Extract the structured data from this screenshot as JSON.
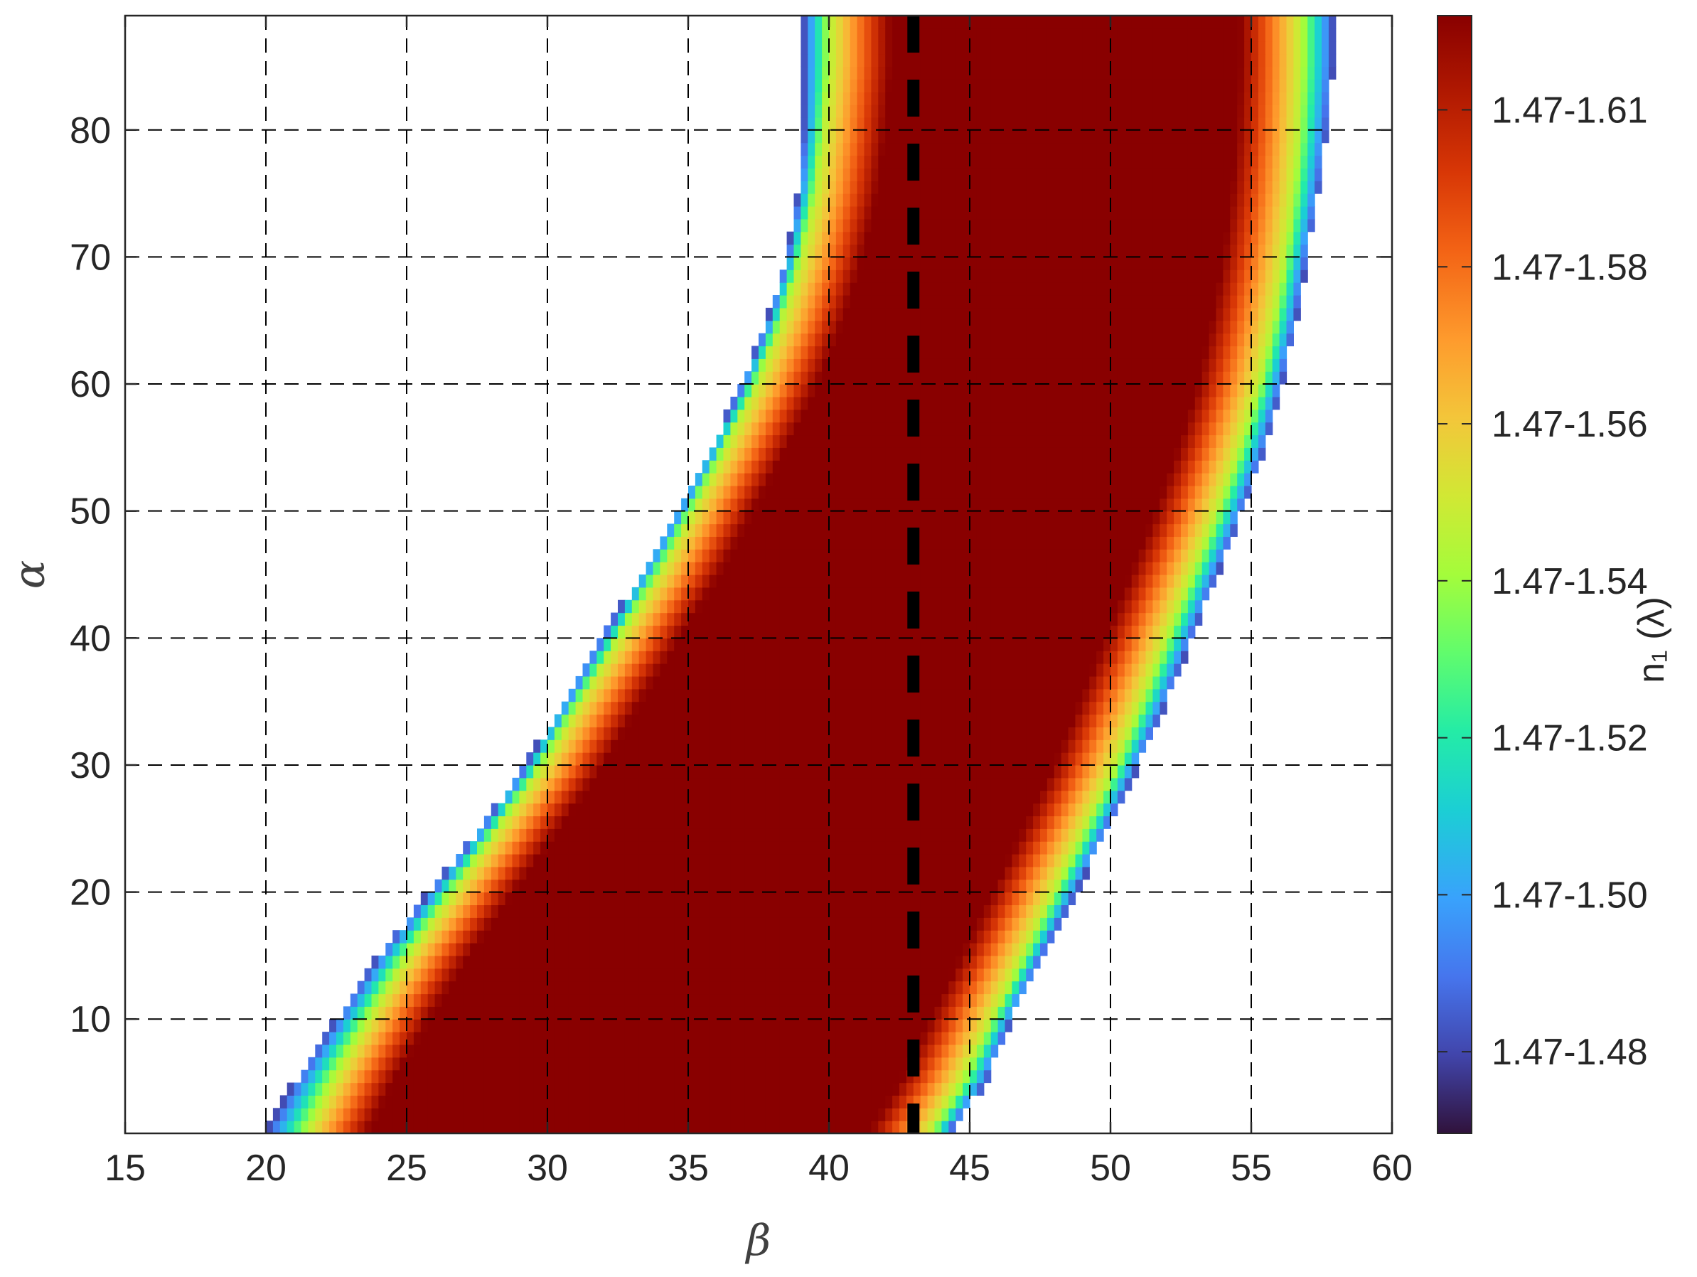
{
  "chart_data": {
    "type": "heatmap",
    "xlabel": "β",
    "ylabel": "α",
    "xlim": [
      15,
      60
    ],
    "ylim": [
      1,
      89
    ],
    "xticks": [
      15,
      20,
      25,
      30,
      35,
      40,
      45,
      50,
      55,
      60
    ],
    "yticks": [
      10,
      20,
      30,
      40,
      50,
      60,
      70,
      80
    ],
    "grid": "dashed",
    "colormap": "turbo",
    "colorbar": {
      "title": "n₁ (λ)",
      "tick_labels": [
        "1.47-1.61",
        "1.47-1.58",
        "1.47-1.56",
        "1.47-1.54",
        "1.47-1.52",
        "1.47-1.50",
        "1.47-1.48"
      ],
      "tick_values": [
        1.61,
        1.585,
        1.56,
        1.535,
        1.51,
        1.485,
        1.46
      ],
      "range": [
        1.447,
        1.625
      ]
    },
    "reference_line": {
      "beta": 43,
      "style": "thick-dashed",
      "color": "#000000"
    },
    "left_boundary": [
      {
        "alpha": 1,
        "beta": 20.0
      },
      {
        "alpha": 5,
        "beta": 21.0
      },
      {
        "alpha": 10,
        "beta": 22.5
      },
      {
        "alpha": 15,
        "beta": 24.0
      },
      {
        "alpha": 20,
        "beta": 25.8
      },
      {
        "alpha": 25,
        "beta": 27.6
      },
      {
        "alpha": 30,
        "beta": 29.2
      },
      {
        "alpha": 35,
        "beta": 30.6
      },
      {
        "alpha": 40,
        "beta": 31.9
      },
      {
        "alpha": 45,
        "beta": 33.3
      },
      {
        "alpha": 50,
        "beta": 34.6
      },
      {
        "alpha": 55,
        "beta": 35.8
      },
      {
        "alpha": 60,
        "beta": 36.9
      },
      {
        "alpha": 65,
        "beta": 37.8
      },
      {
        "alpha": 70,
        "beta": 38.5
      },
      {
        "alpha": 75,
        "beta": 38.9
      },
      {
        "alpha": 80,
        "beta": 39.1
      },
      {
        "alpha": 85,
        "beta": 39.1
      },
      {
        "alpha": 89,
        "beta": 39.1
      }
    ],
    "right_boundary": [
      {
        "alpha": 1,
        "beta": 44.3
      },
      {
        "alpha": 5,
        "beta": 45.6
      },
      {
        "alpha": 10,
        "beta": 46.5
      },
      {
        "alpha": 15,
        "beta": 47.6
      },
      {
        "alpha": 20,
        "beta": 48.8
      },
      {
        "alpha": 25,
        "beta": 49.9
      },
      {
        "alpha": 30,
        "beta": 51.0
      },
      {
        "alpha": 35,
        "beta": 52.0
      },
      {
        "alpha": 40,
        "beta": 52.9
      },
      {
        "alpha": 45,
        "beta": 53.8
      },
      {
        "alpha": 50,
        "beta": 54.7
      },
      {
        "alpha": 55,
        "beta": 55.5
      },
      {
        "alpha": 60,
        "beta": 56.1
      },
      {
        "alpha": 65,
        "beta": 56.6
      },
      {
        "alpha": 70,
        "beta": 57.0
      },
      {
        "alpha": 75,
        "beta": 57.4
      },
      {
        "alpha": 80,
        "beta": 57.7
      },
      {
        "alpha": 85,
        "beta": 57.9
      },
      {
        "alpha": 89,
        "beta": 57.9
      }
    ],
    "left_ridge": [
      {
        "alpha": 1,
        "beta": 21.4
      },
      {
        "alpha": 5,
        "beta": 22.3
      },
      {
        "alpha": 10,
        "beta": 23.6
      },
      {
        "alpha": 15,
        "beta": 25.0
      },
      {
        "alpha": 20,
        "beta": 26.6
      },
      {
        "alpha": 25,
        "beta": 28.2
      },
      {
        "alpha": 30,
        "beta": 29.8
      },
      {
        "alpha": 35,
        "beta": 31.1
      },
      {
        "alpha": 40,
        "beta": 32.5
      },
      {
        "alpha": 45,
        "beta": 33.9
      },
      {
        "alpha": 50,
        "beta": 35.1
      },
      {
        "alpha": 55,
        "beta": 36.3
      },
      {
        "alpha": 60,
        "beta": 37.4
      },
      {
        "alpha": 65,
        "beta": 38.3
      },
      {
        "alpha": 70,
        "beta": 39.0
      },
      {
        "alpha": 75,
        "beta": 39.5
      },
      {
        "alpha": 80,
        "beta": 39.8
      },
      {
        "alpha": 85,
        "beta": 40.0
      },
      {
        "alpha": 89,
        "beta": 40.0
      }
    ],
    "right_ridge": [
      {
        "alpha": 1,
        "beta": 43.6
      },
      {
        "alpha": 5,
        "beta": 44.7
      },
      {
        "alpha": 10,
        "beta": 45.8
      },
      {
        "alpha": 15,
        "beta": 46.9
      },
      {
        "alpha": 20,
        "beta": 48.0
      },
      {
        "alpha": 25,
        "beta": 49.1
      },
      {
        "alpha": 30,
        "beta": 50.2
      },
      {
        "alpha": 35,
        "beta": 51.1
      },
      {
        "alpha": 40,
        "beta": 52.0
      },
      {
        "alpha": 45,
        "beta": 52.9
      },
      {
        "alpha": 50,
        "beta": 53.8
      },
      {
        "alpha": 55,
        "beta": 54.6
      },
      {
        "alpha": 60,
        "beta": 55.3
      },
      {
        "alpha": 65,
        "beta": 55.8
      },
      {
        "alpha": 70,
        "beta": 56.2
      },
      {
        "alpha": 75,
        "beta": 56.5
      },
      {
        "alpha": 80,
        "beta": 56.7
      },
      {
        "alpha": 85,
        "beta": 56.8
      },
      {
        "alpha": 89,
        "beta": 56.8
      }
    ]
  }
}
